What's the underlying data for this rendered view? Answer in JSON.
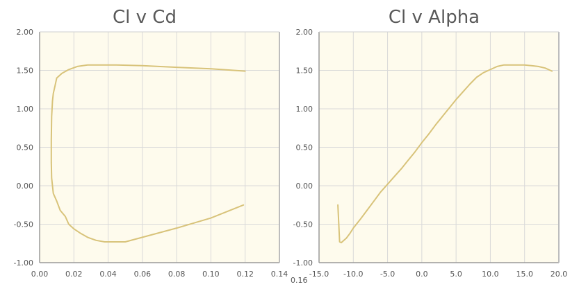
{
  "chart_data": [
    {
      "type": "line",
      "title": "Cl v Cd",
      "xlabel": "",
      "ylabel": "",
      "xlim": [
        0.0,
        0.14
      ],
      "ylim": [
        -1.0,
        2.0
      ],
      "x_ticks": [
        "0.00",
        "0.02",
        "0.04",
        "0.06",
        "0.08",
        "0.10",
        "0.12",
        "0.14"
      ],
      "y_ticks": [
        "-1.00",
        "-0.50",
        "0.00",
        "0.50",
        "1.00",
        "1.50",
        "2.00"
      ],
      "overflow_tick_label": "0.16",
      "grid": true,
      "background": "#fefbed",
      "line_color": "#d8c37a",
      "series": [
        {
          "x": [
            0.12,
            0.1,
            0.08,
            0.06,
            0.045,
            0.035,
            0.028,
            0.022,
            0.017,
            0.013,
            0.01,
            0.009,
            0.008,
            0.0075,
            0.007,
            0.0068,
            0.0068,
            0.007,
            0.008,
            0.01,
            0.012,
            0.015,
            0.017,
            0.02,
            0.024,
            0.028,
            0.033,
            0.038,
            0.044,
            0.05,
            0.06,
            0.08,
            0.1,
            0.119
          ],
          "y": [
            1.49,
            1.52,
            1.54,
            1.56,
            1.57,
            1.57,
            1.57,
            1.55,
            1.51,
            1.46,
            1.4,
            1.3,
            1.2,
            1.1,
            0.9,
            0.6,
            0.3,
            0.1,
            -0.1,
            -0.2,
            -0.32,
            -0.4,
            -0.5,
            -0.56,
            -0.62,
            -0.67,
            -0.71,
            -0.73,
            -0.73,
            -0.73,
            -0.67,
            -0.55,
            -0.42,
            -0.25
          ]
        }
      ]
    },
    {
      "type": "line",
      "title": "Cl v Alpha",
      "xlabel": "",
      "ylabel": "",
      "xlim": [
        -15.0,
        20.0
      ],
      "ylim": [
        -1.0,
        2.0
      ],
      "x_ticks": [
        "-15.0",
        "-10.0",
        "-5.0",
        "0.0",
        "5.0",
        "10.0",
        "15.0",
        "20.0"
      ],
      "y_ticks": [
        "-1.00",
        "-0.50",
        "0.00",
        "0.50",
        "1.00",
        "1.50",
        "2.00"
      ],
      "grid": true,
      "background": "#fefbed",
      "line_color": "#d8c37a",
      "series": [
        {
          "x": [
            -12.25,
            -12.0,
            -11.75,
            -11.5,
            -11.0,
            -10.5,
            -10.0,
            -9.0,
            -8.0,
            -7.0,
            -6.0,
            -5.0,
            -4.0,
            -3.0,
            -2.0,
            -1.0,
            0.0,
            1.0,
            2.0,
            3.0,
            4.0,
            5.0,
            6.0,
            7.0,
            8.0,
            9.0,
            10.0,
            11.0,
            12.0,
            13.0,
            14.0,
            15.0,
            16.0,
            17.0,
            18.0,
            19.0
          ],
          "y": [
            -0.25,
            -0.73,
            -0.74,
            -0.72,
            -0.68,
            -0.62,
            -0.55,
            -0.44,
            -0.32,
            -0.2,
            -0.08,
            0.02,
            0.12,
            0.22,
            0.33,
            0.44,
            0.56,
            0.67,
            0.79,
            0.9,
            1.01,
            1.12,
            1.22,
            1.32,
            1.41,
            1.47,
            1.51,
            1.55,
            1.57,
            1.57,
            1.57,
            1.57,
            1.56,
            1.55,
            1.53,
            1.49
          ]
        }
      ]
    }
  ]
}
